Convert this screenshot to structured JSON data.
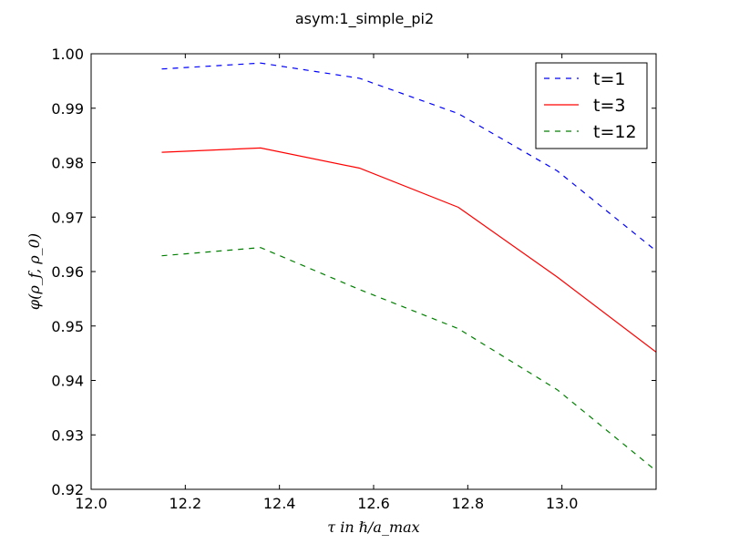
{
  "chart_data": {
    "type": "line",
    "title": "asym:1_simple_pi2",
    "xlabel": "τ in ℏ/a_max",
    "ylabel": "φ(ρ_f, ρ_0)",
    "xlim": [
      12.0,
      13.2
    ],
    "ylim": [
      0.92,
      1.0
    ],
    "xticks": [
      "12.0",
      "12.2",
      "12.4",
      "12.6",
      "12.8",
      "13.0"
    ],
    "yticks": [
      "0.92",
      "0.93",
      "0.94",
      "0.95",
      "0.96",
      "0.97",
      "0.98",
      "0.99",
      "1.00"
    ],
    "x": [
      12.15,
      12.36,
      12.57,
      12.78,
      12.99,
      13.2
    ],
    "series": [
      {
        "name": "t=1",
        "color": "#0000ff",
        "dash": "dashed",
        "values": [
          0.9972,
          0.9983,
          0.9955,
          0.989,
          0.9785,
          0.9638
        ]
      },
      {
        "name": "t=3",
        "color": "#ff0000",
        "dash": "solid",
        "values": [
          0.9819,
          0.9827,
          0.979,
          0.9718,
          0.959,
          0.9452
        ]
      },
      {
        "name": "t=12",
        "color": "#008000",
        "dash": "dashed",
        "values": [
          0.9629,
          0.9644,
          0.9567,
          0.9495,
          0.9383,
          0.9234
        ]
      }
    ],
    "grid": false,
    "legend_position": "top-right"
  }
}
